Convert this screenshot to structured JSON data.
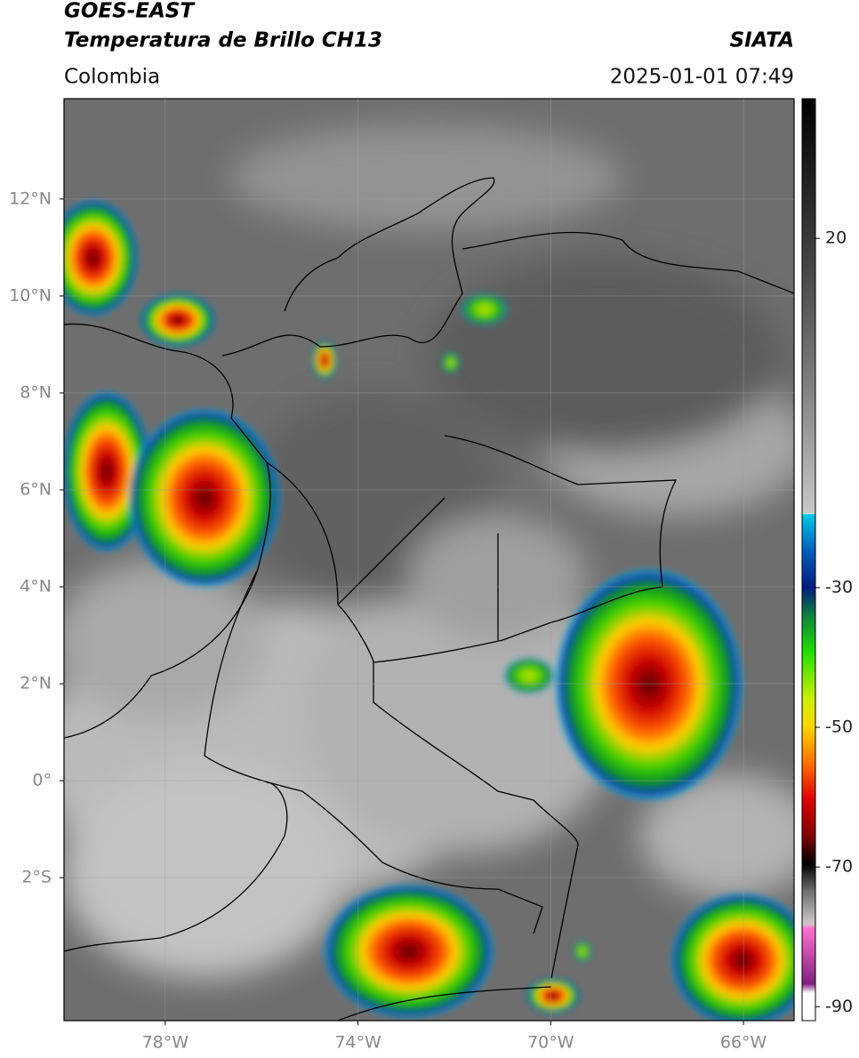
{
  "header": {
    "satellite": "GOES-EAST",
    "product": "Temperatura de Brillo CH13",
    "region": "Colombia",
    "source": "SIATA",
    "datetime": "2025-01-01 07:49"
  },
  "map": {
    "lonlim": [
      -80.1,
      -64.95
    ],
    "latlim": [
      -4.95,
      14.07
    ],
    "lon_ticks": [
      {
        "value": -78,
        "label": "78°W"
      },
      {
        "value": -74,
        "label": "74°W"
      },
      {
        "value": -70,
        "label": "70°W"
      },
      {
        "value": -66,
        "label": "66°W"
      }
    ],
    "lat_ticks": [
      {
        "value": 12,
        "label": "12°N"
      },
      {
        "value": 10,
        "label": "10°N"
      },
      {
        "value": 8,
        "label": "8°N"
      },
      {
        "value": 6,
        "label": "6°N"
      },
      {
        "value": 4,
        "label": "4°N"
      },
      {
        "value": 2,
        "label": "2°N"
      },
      {
        "value": 0,
        "label": "0°"
      },
      {
        "value": -2,
        "label": "2°S"
      }
    ],
    "grid": true
  },
  "colorbar": {
    "limits": [
      -92,
      40
    ],
    "ticks": [
      20,
      -30,
      -50,
      -70,
      -90
    ]
  }
}
